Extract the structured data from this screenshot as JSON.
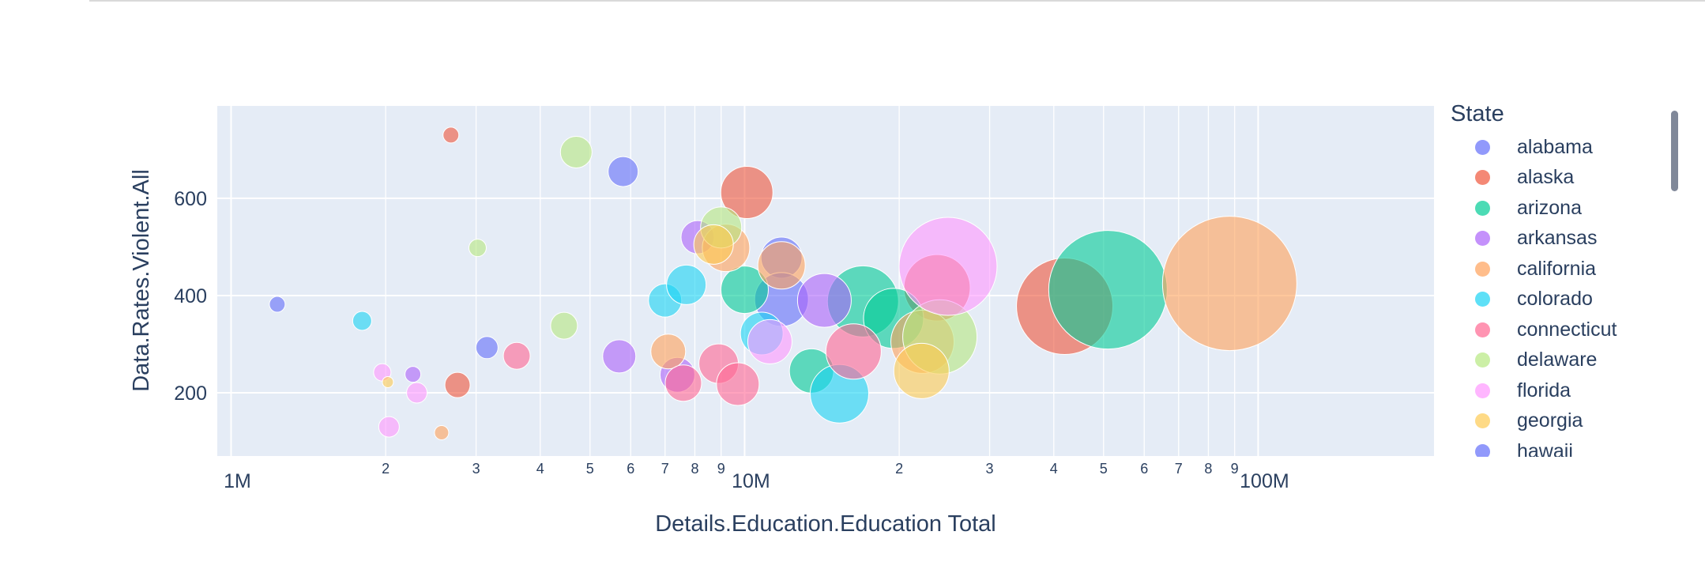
{
  "chart_data": {
    "type": "scatter",
    "subtype": "bubble",
    "xlabel": "Details.Education.Education Total",
    "ylabel": "Data.Rates.Violent.All",
    "x_scale": "log",
    "xlim": [
      940000,
      220000000
    ],
    "ylim": [
      70,
      790
    ],
    "x_tick_labels": [
      {
        "value": 1000000,
        "label": "1M",
        "major": true
      },
      {
        "value": 2000000,
        "label": "2"
      },
      {
        "value": 3000000,
        "label": "3"
      },
      {
        "value": 4000000,
        "label": "4"
      },
      {
        "value": 5000000,
        "label": "5"
      },
      {
        "value": 6000000,
        "label": "6"
      },
      {
        "value": 7000000,
        "label": "7"
      },
      {
        "value": 8000000,
        "label": "8"
      },
      {
        "value": 9000000,
        "label": "9"
      },
      {
        "value": 10000000,
        "label": "10M",
        "major": true
      },
      {
        "value": 20000000,
        "label": "2"
      },
      {
        "value": 30000000,
        "label": "3"
      },
      {
        "value": 40000000,
        "label": "4"
      },
      {
        "value": 50000000,
        "label": "5"
      },
      {
        "value": 60000000,
        "label": "6"
      },
      {
        "value": 70000000,
        "label": "7"
      },
      {
        "value": 80000000,
        "label": "8"
      },
      {
        "value": 90000000,
        "label": "9"
      },
      {
        "value": 100000000,
        "label": "100M",
        "major": true
      }
    ],
    "y_tick_labels": [
      {
        "value": 200,
        "label": "200"
      },
      {
        "value": 400,
        "label": "400"
      },
      {
        "value": 600,
        "label": "600"
      }
    ],
    "grid": true,
    "legend_title": "State",
    "legend_position": "right",
    "series": [
      {
        "name": "alabama",
        "color": "#636efa",
        "points": [
          [
            1230000,
            382,
            10
          ],
          [
            3150000,
            293,
            14
          ],
          [
            5800000,
            655,
            19
          ],
          [
            11800000,
            478,
            26
          ],
          [
            11800000,
            392,
            34
          ]
        ]
      },
      {
        "name": "alaska",
        "color": "#EF553B",
        "points": [
          [
            2680000,
            730,
            10
          ],
          [
            2760000,
            216,
            16
          ],
          [
            10100000,
            612,
            33
          ],
          [
            23700000,
            416,
            42
          ],
          [
            42000000,
            378,
            61
          ]
        ]
      },
      {
        "name": "arizona",
        "color": "#00cc96",
        "points": [
          [
            10000000,
            412,
            30
          ],
          [
            13500000,
            245,
            28
          ],
          [
            17000000,
            388,
            45
          ],
          [
            19500000,
            353,
            38
          ],
          [
            51000000,
            412,
            75
          ]
        ]
      },
      {
        "name": "arkansas",
        "color": "#ab63fa",
        "points": [
          [
            2260000,
            238,
            10
          ],
          [
            5700000,
            275,
            21
          ],
          [
            8100000,
            520,
            21
          ],
          [
            7400000,
            237,
            22
          ],
          [
            14300000,
            390,
            34
          ]
        ]
      },
      {
        "name": "california",
        "color": "#FFA15A",
        "points": [
          [
            2570000,
            118,
            9
          ],
          [
            7100000,
            285,
            22
          ],
          [
            9200000,
            498,
            30
          ],
          [
            11800000,
            462,
            30
          ],
          [
            22200000,
            305,
            40
          ],
          [
            88000000,
            425,
            85
          ]
        ]
      },
      {
        "name": "colorado",
        "color": "#19d3f3",
        "points": [
          [
            1800000,
            348,
            12
          ],
          [
            7000000,
            390,
            21
          ],
          [
            7700000,
            422,
            25
          ],
          [
            10800000,
            322,
            27
          ],
          [
            15300000,
            198,
            37
          ]
        ]
      },
      {
        "name": "connecticut",
        "color": "#FF6692",
        "points": [
          [
            3600000,
            276,
            17
          ],
          [
            7600000,
            220,
            23
          ],
          [
            8900000,
            260,
            25
          ],
          [
            9700000,
            218,
            27
          ],
          [
            16300000,
            285,
            35
          ]
        ]
      },
      {
        "name": "delaware",
        "color": "#B6E880",
        "points": [
          [
            3020000,
            498,
            11
          ],
          [
            4450000,
            338,
            17
          ],
          [
            4700000,
            695,
            20
          ],
          [
            9000000,
            540,
            26
          ],
          [
            24000000,
            315,
            47
          ]
        ]
      },
      {
        "name": "florida",
        "color": "#FF97FF",
        "points": [
          [
            1970000,
            242,
            11
          ],
          [
            2030000,
            130,
            13
          ],
          [
            2300000,
            200,
            13
          ],
          [
            11200000,
            305,
            28
          ],
          [
            24900000,
            460,
            62
          ]
        ]
      },
      {
        "name": "georgia",
        "color": "#FECB52",
        "points": [
          [
            2020000,
            222,
            7
          ],
          [
            8700000,
            505,
            25
          ],
          [
            22100000,
            245,
            35
          ]
        ]
      },
      {
        "name": "hawaii",
        "color": "#636efa",
        "points": []
      }
    ]
  }
}
